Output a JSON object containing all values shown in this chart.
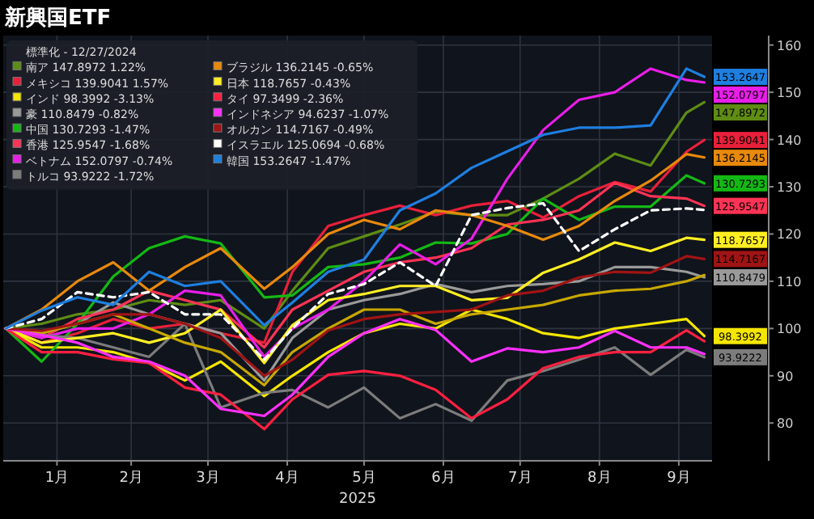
{
  "chart_data": {
    "type": "line",
    "title": "新興国ETF",
    "xlabel": "2025",
    "legend_title": "標準化 - 12/27/2024",
    "legend": "top left",
    "grid": true,
    "x": [
      "2024-12-27",
      "2025-01-10",
      "2025-01-24",
      "2025-02-07",
      "2025-02-21",
      "2025-03-07",
      "2025-03-21",
      "2025-04-07",
      "2025-04-18",
      "2025-05-02",
      "2025-05-16",
      "2025-05-30",
      "2025-06-13",
      "2025-06-27",
      "2025-07-11",
      "2025-07-25",
      "2025-08-08",
      "2025-08-22",
      "2025-09-05",
      "2025-09-19",
      "2025-09-26"
    ],
    "xlim": [
      "2024-12-26",
      "2025-09-29"
    ],
    "xticks": [
      {
        "value": "2025-01-16",
        "label": "1月"
      },
      {
        "value": "2025-02-14",
        "label": "2月"
      },
      {
        "value": "2025-03-16",
        "label": "3月"
      },
      {
        "value": "2025-04-16",
        "label": "4月"
      },
      {
        "value": "2025-05-16",
        "label": "5月"
      },
      {
        "value": "2025-06-16",
        "label": "6月"
      },
      {
        "value": "2025-07-16",
        "label": "7月"
      },
      {
        "value": "2025-08-16",
        "label": "8月"
      },
      {
        "value": "2025-09-16",
        "label": "9月"
      }
    ],
    "ylim": [
      72,
      162
    ],
    "yticks": [
      80,
      90,
      100,
      110,
      120,
      130,
      140,
      150,
      160
    ],
    "series": [
      {
        "name": "南ア 147.8972 1.22%",
        "color": "#5e8c14",
        "values": [
          100,
          101,
          103,
          104,
          106,
          105,
          106,
          100,
          108,
          117,
          119.5,
          122,
          124.7,
          124,
          124,
          127.5,
          131.7,
          137,
          134.5,
          145.7,
          147.8972
        ],
        "value_labels": [
          null,
          null,
          null,
          null,
          null,
          null,
          null,
          null,
          null,
          null,
          null,
          null,
          null,
          null,
          null,
          null,
          null,
          null,
          null,
          null,
          "147.8972"
        ]
      },
      {
        "name": "メキシコ 139.9041 1.57%",
        "color": "#e8203a",
        "values": [
          100,
          97,
          99,
          102,
          100,
          101,
          99,
          97,
          112,
          121.7,
          124,
          126,
          124,
          126,
          127,
          123.5,
          128,
          131,
          129,
          137.4,
          139.9041
        ],
        "value_labels": [
          null,
          null,
          null,
          null,
          null,
          null,
          null,
          null,
          null,
          null,
          null,
          null,
          null,
          null,
          null,
          null,
          null,
          null,
          null,
          null,
          "139.9041"
        ]
      },
      {
        "name": "インド 98.3992 -3.13%",
        "color": "#f5e600",
        "values": [
          100,
          96,
          96,
          95,
          92.7,
          89,
          93,
          85.7,
          90,
          95,
          99,
          101,
          100,
          104,
          102,
          99,
          98,
          100,
          101,
          102,
          98.3992
        ],
        "value_labels": [
          null,
          null,
          null,
          null,
          null,
          null,
          null,
          null,
          null,
          null,
          null,
          null,
          null,
          null,
          null,
          null,
          null,
          null,
          null,
          null,
          "98.3992"
        ]
      },
      {
        "name": "豪 110.8479 -0.82%",
        "color": "#9a9a9a",
        "values": [
          100,
          99,
          101,
          105.5,
          103,
          101,
          99,
          89,
          98,
          104,
          106,
          107.3,
          109.4,
          107.7,
          109,
          109.4,
          110,
          113,
          113,
          112,
          110.8479
        ],
        "value_labels": [
          null,
          null,
          null,
          null,
          null,
          null,
          null,
          null,
          null,
          null,
          null,
          null,
          null,
          null,
          null,
          null,
          null,
          null,
          null,
          null,
          "110.8479"
        ]
      },
      {
        "name": "中国 130.7293 -1.47%",
        "color": "#14b814",
        "values": [
          100,
          93,
          101,
          111,
          117,
          119.5,
          118,
          106.6,
          107,
          113,
          113.6,
          115,
          118.2,
          118,
          120,
          127.5,
          123,
          125.8,
          125.8,
          132.4,
          130.7293
        ],
        "value_labels": [
          null,
          null,
          null,
          null,
          null,
          null,
          null,
          null,
          null,
          null,
          null,
          null,
          null,
          null,
          null,
          null,
          null,
          null,
          null,
          null,
          "130.7293"
        ]
      },
      {
        "name": "香港 125.9547 -1.68%",
        "color": "#ff3355",
        "values": [
          100,
          98,
          102,
          104,
          108,
          106,
          104,
          96,
          104,
          108,
          112,
          114,
          115,
          117,
          122,
          123,
          125,
          130.8,
          128,
          127.5,
          125.9547
        ],
        "value_labels": [
          null,
          null,
          null,
          null,
          null,
          null,
          null,
          null,
          null,
          null,
          null,
          null,
          null,
          null,
          null,
          null,
          null,
          null,
          null,
          null,
          "125.9547"
        ]
      },
      {
        "name": "ベトナム 152.0797 -0.74%",
        "color": "#e81ee8",
        "values": [
          100,
          98,
          100,
          100,
          103,
          108,
          107,
          94,
          100,
          104,
          110,
          117.8,
          113.6,
          119,
          131.7,
          142,
          148.4,
          150,
          155,
          152.6,
          152.0797
        ],
        "value_labels": [
          null,
          null,
          null,
          null,
          null,
          null,
          null,
          null,
          null,
          null,
          null,
          null,
          null,
          null,
          null,
          null,
          null,
          null,
          null,
          null,
          "152.0797"
        ]
      },
      {
        "name": "トルコ 93.9222 -1.72%",
        "color": "#7c7c7c",
        "values": [
          100,
          98.6,
          98,
          96,
          94,
          101,
          83.3,
          86.4,
          87,
          83.3,
          87.5,
          81,
          84,
          80.5,
          89,
          91,
          93.4,
          96,
          90.2,
          95.5,
          93.9222
        ],
        "value_labels": [
          null,
          null,
          null,
          null,
          null,
          null,
          null,
          null,
          null,
          null,
          null,
          null,
          null,
          null,
          null,
          null,
          null,
          null,
          null,
          null,
          "93.9222"
        ]
      },
      {
        "name": "ブラジル 136.2145 -0.65%",
        "color": "#e8890c",
        "values": [
          100,
          104,
          110,
          114,
          108,
          113,
          117,
          108.4,
          113,
          120,
          123,
          121,
          125,
          124,
          121.7,
          118.8,
          121.7,
          127,
          131.3,
          136.9,
          136.2145
        ],
        "value_labels": [
          null,
          null,
          null,
          null,
          null,
          null,
          null,
          null,
          null,
          null,
          null,
          null,
          null,
          null,
          null,
          null,
          null,
          null,
          null,
          null,
          "136.2145"
        ]
      },
      {
        "name": "日本 118.7657 -0.43%",
        "color": "#ffee22",
        "values": [
          100,
          97,
          98,
          99,
          97,
          99,
          104,
          92.7,
          100.7,
          106,
          107.3,
          109,
          109,
          106,
          106.5,
          111.8,
          114.6,
          118.2,
          116.4,
          119.2,
          118.7657
        ],
        "value_labels": [
          null,
          null,
          null,
          null,
          null,
          null,
          null,
          null,
          null,
          null,
          null,
          null,
          null,
          null,
          null,
          null,
          null,
          null,
          null,
          null,
          "118.7657"
        ]
      },
      {
        "color": "#c8a800",
        "values": [
          100,
          99,
          101,
          103,
          100,
          97,
          95,
          88,
          95,
          100,
          104,
          104,
          101,
          103,
          104,
          105,
          107,
          108,
          108.4,
          110,
          111.3
        ]
      },
      {
        "name": "タイ 97.3499 -2.36%",
        "color": "#ff2040",
        "values": [
          100,
          95,
          95,
          93.5,
          92.7,
          87.5,
          86,
          78.7,
          85,
          90.2,
          91,
          90,
          87,
          81,
          85,
          91.6,
          94,
          95,
          95,
          99.6,
          97.3
        ]
      },
      {
        "name": "インドネシア 94.6237 -1.07%",
        "color": "#ff30ff",
        "values": [
          100,
          98.6,
          97,
          94,
          93,
          90,
          83,
          81.5,
          86,
          94,
          99,
          102,
          99.7,
          93,
          95.8,
          95,
          96,
          99.5,
          96,
          96,
          94.6
        ]
      },
      {
        "name": "オルカン 114.7167 -0.49%",
        "color": "#a01414",
        "values": [
          100,
          99.5,
          101,
          103,
          103,
          101,
          98,
          90,
          93.4,
          99.6,
          102,
          103,
          103.5,
          104,
          107,
          108,
          110.8,
          112,
          111.8,
          115.3,
          114.7167
        ],
        "value_labels": [
          null,
          null,
          null,
          null,
          null,
          null,
          null,
          null,
          null,
          null,
          null,
          null,
          null,
          null,
          null,
          null,
          null,
          null,
          null,
          null,
          "114.7167"
        ]
      },
      {
        "name": "イスラエル 125.0694 -0.68%",
        "color": "#ffffff",
        "line_style": "dashed",
        "values": [
          100,
          102,
          107.7,
          106.6,
          107.7,
          103,
          103,
          93.4,
          100,
          107.3,
          109.4,
          114,
          109,
          124,
          125.5,
          126.5,
          116.4,
          121,
          125,
          125.4,
          125.1
        ]
      },
      {
        "name": "韓国 153.2647 -1.47%",
        "color": "#1e7fe0",
        "values": [
          100,
          103.8,
          106.6,
          105,
          112,
          109,
          110,
          100.7,
          105.5,
          112,
          114.6,
          125,
          128.6,
          134,
          137.5,
          141,
          142.5,
          142.5,
          143,
          155,
          153.2647
        ],
        "value_labels": [
          null,
          null,
          null,
          null,
          null,
          null,
          null,
          null,
          null,
          null,
          null,
          null,
          null,
          null,
          null,
          null,
          null,
          null,
          null,
          null,
          "153.2647"
        ]
      }
    ]
  }
}
